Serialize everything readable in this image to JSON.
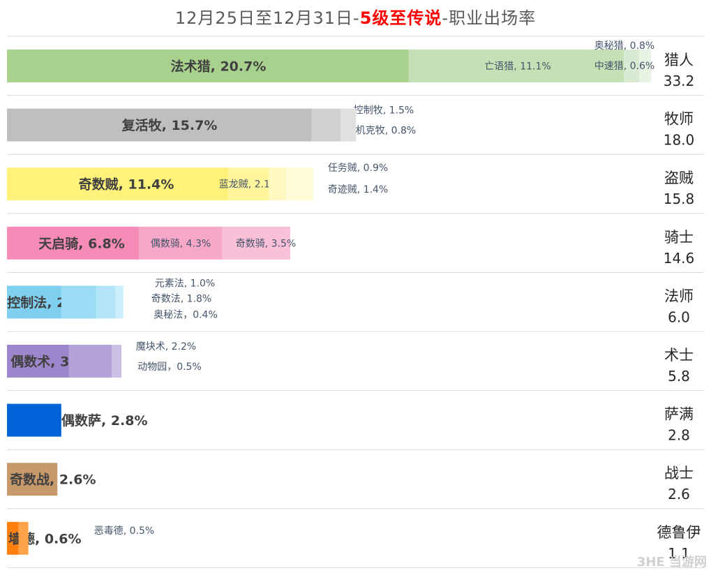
{
  "title": {
    "prefix": "12月25日至12月31日-",
    "highlight": "5级至传说",
    "suffix": "-职业出场率"
  },
  "watermark": "3HE 当游网",
  "chart_data": {
    "type": "bar",
    "stacked": true,
    "orientation": "horizontal",
    "unit": "%",
    "xlim": [
      0,
      35
    ],
    "rows": [
      {
        "class_name": "猎人",
        "total": "33.2",
        "segments": [
          {
            "name": "法术猎",
            "value": 20.7,
            "label": "法术猎, 20.7%",
            "color": "#a9d18e"
          },
          {
            "name": "亡语猎",
            "value": 11.1,
            "label": "亡语猎, 11.1%",
            "color": "#c5e0b4"
          },
          {
            "name": "奥秘猎",
            "value": 0.8,
            "label": "奥秘猎, 0.8%",
            "color": "#d9ead3"
          },
          {
            "name": "中速猎",
            "value": 0.6,
            "label": "中速猎, 0.6%",
            "color": "#e9f3e3"
          }
        ]
      },
      {
        "class_name": "牧师",
        "total": "18.0",
        "segments": [
          {
            "name": "复活牧",
            "value": 15.7,
            "label": "复活牧, 15.7%",
            "color": "#bfbfbf"
          },
          {
            "name": "控制牧",
            "value": 1.5,
            "label": "控制牧, 1.5%",
            "color": "#d0d0d0"
          },
          {
            "name": "机克牧",
            "value": 0.8,
            "label": "机克牧, 0.8%",
            "color": "#e0e0e0"
          }
        ]
      },
      {
        "class_name": "盗贼",
        "total": "15.8",
        "segments": [
          {
            "name": "奇数贼",
            "value": 11.4,
            "label": "奇数贼, 11.4%",
            "color": "#fff27a"
          },
          {
            "name": "蓝龙贼",
            "value": 2.1,
            "label": "蓝龙贼, 2.1%",
            "color": "#fff59d"
          },
          {
            "name": "任务贼",
            "value": 0.9,
            "label": "任务贼, 0.9%",
            "color": "#fff8bf"
          },
          {
            "name": "奇迹贼",
            "value": 1.4,
            "label": "奇迹贼, 1.4%",
            "color": "#fffbd6"
          }
        ]
      },
      {
        "class_name": "骑士",
        "total": "14.6",
        "segments": [
          {
            "name": "天启骑",
            "value": 6.8,
            "label": "天启骑, 6.8%",
            "color": "#f58bb6"
          },
          {
            "name": "偶数骑",
            "value": 4.3,
            "label": "偶数骑, 4.3%",
            "color": "#f7a7c8"
          },
          {
            "name": "奇数骑",
            "value": 3.5,
            "label": "奇数骑, 3.5%",
            "color": "#f9c0d8"
          }
        ]
      },
      {
        "class_name": "法师",
        "total": "6.0",
        "segments": [
          {
            "name": "控制法",
            "value": 2.8,
            "label": "控制法, 2.8%",
            "color": "#7fd0f0"
          },
          {
            "name": "奇数法",
            "value": 1.8,
            "label": "奇数法, 1.8%",
            "color": "#9bdcf5"
          },
          {
            "name": "元素法",
            "value": 1.0,
            "label": "元素法, 1.0%",
            "color": "#b3e5f8"
          },
          {
            "name": "奥秘法",
            "value": 0.4,
            "label": "奥秘法，0.4%",
            "color": "#cbeefb"
          }
        ]
      },
      {
        "class_name": "术士",
        "total": "5.8",
        "segments": [
          {
            "name": "偶数术",
            "value": 3.2,
            "label": "偶数术, 3.2%",
            "color": "#9e86cc"
          },
          {
            "name": "魔块术",
            "value": 2.2,
            "label": "魔块术, 2.2%",
            "color": "#b4a3d9"
          },
          {
            "name": "动物园",
            "value": 0.5,
            "label": "动物园，0.5%",
            "color": "#cbbfe6"
          }
        ]
      },
      {
        "class_name": "萨满",
        "total": "2.8",
        "segments": [
          {
            "name": "偶数萨",
            "value": 2.8,
            "label": "偶数萨, 2.8%",
            "color": "#0064d8"
          }
        ]
      },
      {
        "class_name": "战士",
        "total": "2.6",
        "segments": [
          {
            "name": "奇数战",
            "value": 2.6,
            "label": "奇数战, 2.6%",
            "color": "#c8996a"
          }
        ]
      },
      {
        "class_name": "德鲁伊",
        "total": "1.1",
        "segments": [
          {
            "name": "墙德",
            "value": 0.6,
            "label": "墙德, 0.6%",
            "color": "#ff7f0e"
          },
          {
            "name": "恶毒德",
            "value": 0.5,
            "label": "恶毒德, 0.5%",
            "color": "#ffa34a"
          }
        ]
      }
    ]
  }
}
